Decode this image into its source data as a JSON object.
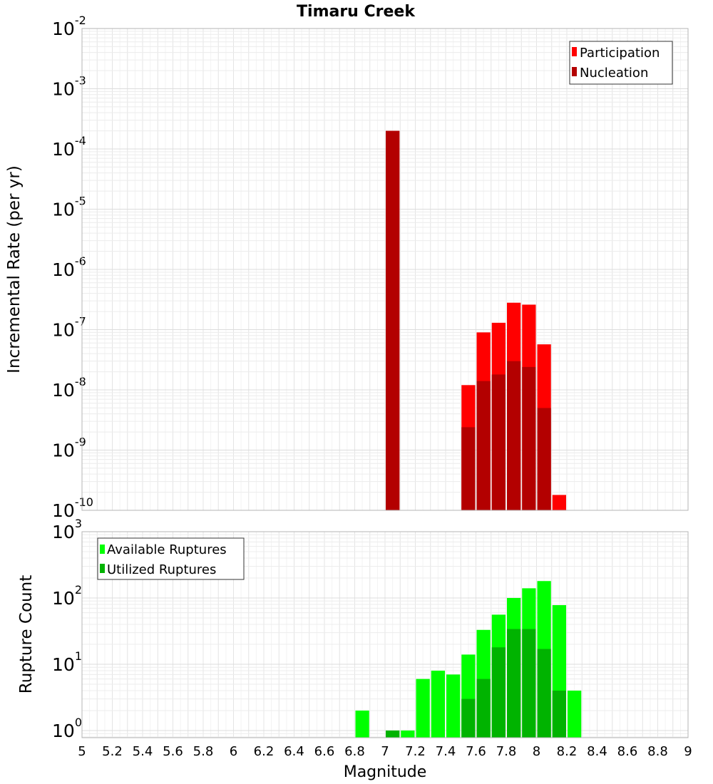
{
  "chart_data": [
    {
      "type": "bar",
      "title": "Timaru Creek",
      "xlabel": "",
      "ylabel": "Incremental Rate (per yr)",
      "yscale": "log",
      "ylim": [
        1e-10,
        0.01
      ],
      "xlim": [
        5,
        9
      ],
      "grid": true,
      "legend_position": "top-right",
      "y_ticks": [
        {
          "base": "10",
          "exp": "-10",
          "value": 1e-10
        },
        {
          "base": "10",
          "exp": "-9",
          "value": 1e-09
        },
        {
          "base": "10",
          "exp": "-8",
          "value": 1e-08
        },
        {
          "base": "10",
          "exp": "-7",
          "value": 1e-07
        },
        {
          "base": "10",
          "exp": "-6",
          "value": 1e-06
        },
        {
          "base": "10",
          "exp": "-5",
          "value": 1e-05
        },
        {
          "base": "10",
          "exp": "-4",
          "value": 0.0001
        },
        {
          "base": "10",
          "exp": "-3",
          "value": 0.001
        },
        {
          "base": "10",
          "exp": "-2",
          "value": 0.01
        }
      ],
      "series": [
        {
          "name": "Participation",
          "color": "#ff0000",
          "x": [
            7.05,
            7.55,
            7.65,
            7.75,
            7.85,
            7.95,
            8.05,
            8.15
          ],
          "values": [
            0.0002,
            1.2e-08,
            9e-08,
            1.3e-07,
            2.8e-07,
            2.6e-07,
            5.7e-08,
            1.8e-10
          ]
        },
        {
          "name": "Nucleation",
          "color": "#b30000",
          "x": [
            7.05,
            7.55,
            7.65,
            7.75,
            7.85,
            7.95,
            8.05
          ],
          "values": [
            0.0002,
            2.4e-09,
            1.4e-08,
            1.8e-08,
            3e-08,
            2.4e-08,
            5e-09
          ]
        }
      ]
    },
    {
      "type": "bar",
      "title": "",
      "xlabel": "Magnitude",
      "ylabel": "Rupture Count",
      "yscale": "log",
      "ylim": [
        0.78,
        1000
      ],
      "xlim": [
        5,
        9
      ],
      "grid": true,
      "legend_position": "top-left",
      "x_ticks": [
        "5",
        "5.2",
        "5.4",
        "5.6",
        "5.8",
        "6",
        "6.2",
        "6.4",
        "6.6",
        "6.8",
        "7",
        "7.2",
        "7.4",
        "7.6",
        "7.8",
        "8",
        "8.2",
        "8.4",
        "8.6",
        "8.8",
        "9"
      ],
      "y_ticks": [
        {
          "base": "10",
          "exp": "0",
          "value": 1
        },
        {
          "base": "10",
          "exp": "1",
          "value": 10
        },
        {
          "base": "10",
          "exp": "2",
          "value": 100
        },
        {
          "base": "10",
          "exp": "3",
          "value": 1000
        }
      ],
      "series": [
        {
          "name": "Available Ruptures",
          "color": "#00ff00",
          "x": [
            6.85,
            7.05,
            7.15,
            7.25,
            7.35,
            7.45,
            7.55,
            7.65,
            7.75,
            7.85,
            7.95,
            8.05,
            8.15,
            8.25
          ],
          "values": [
            2,
            1,
            1,
            6,
            8,
            7,
            14,
            33,
            56,
            100,
            140,
            180,
            78,
            4
          ]
        },
        {
          "name": "Utilized Ruptures",
          "color": "#00b300",
          "x": [
            7.05,
            7.55,
            7.65,
            7.75,
            7.85,
            7.95,
            8.05,
            8.15
          ],
          "values": [
            1,
            3,
            6,
            18,
            34,
            34,
            17,
            4
          ]
        }
      ]
    }
  ]
}
